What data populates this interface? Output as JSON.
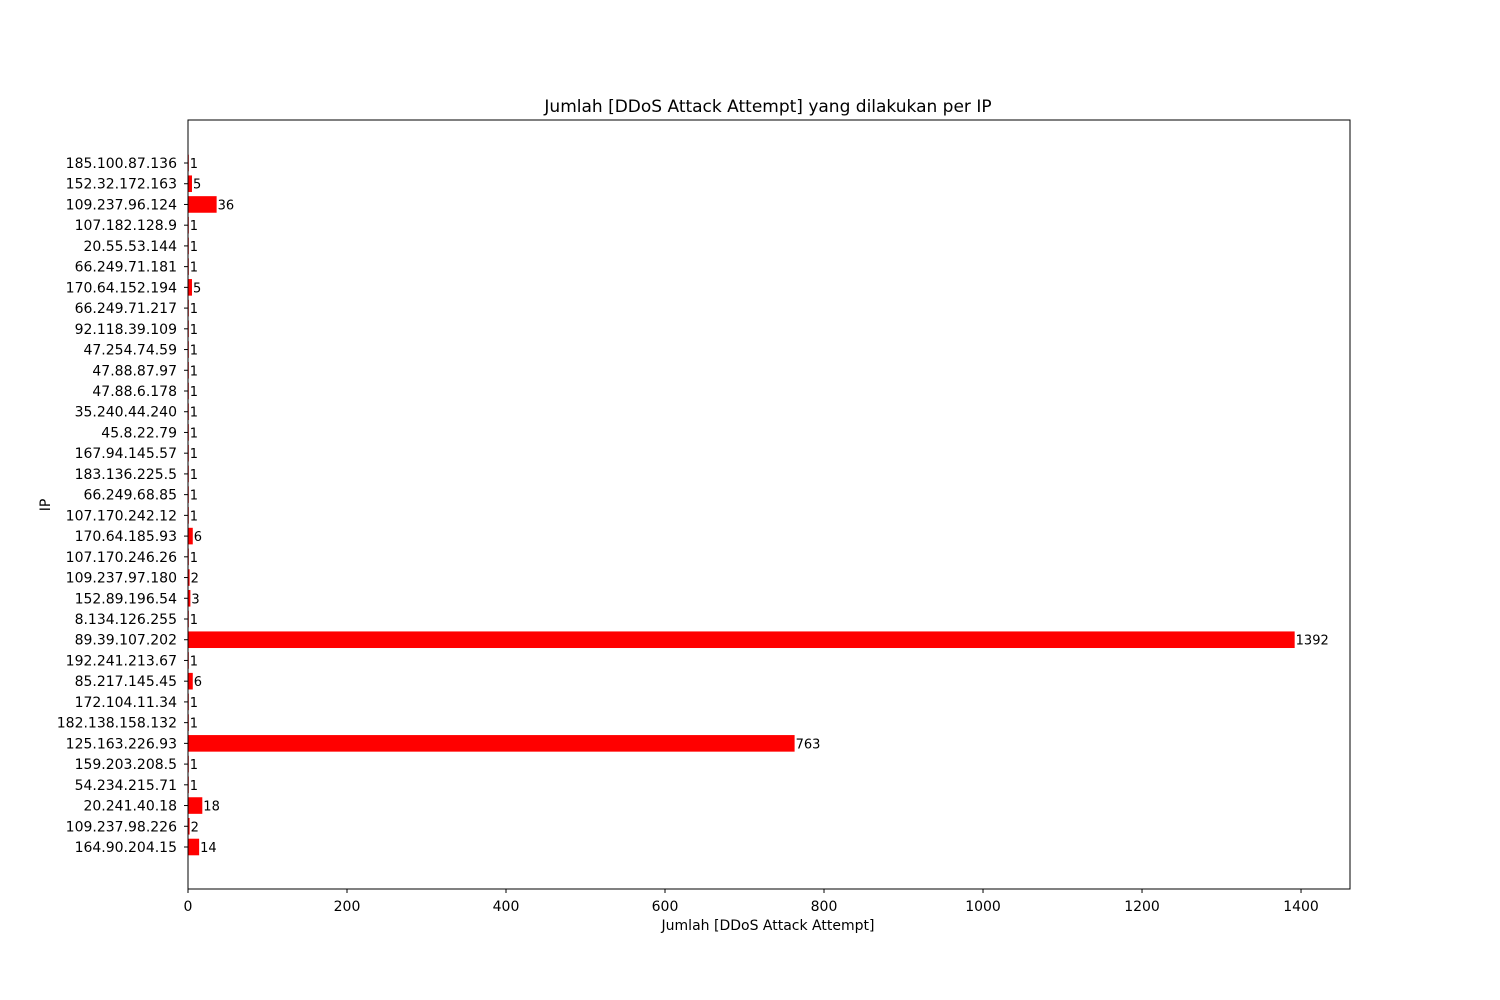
{
  "chart_data": {
    "type": "bar",
    "orientation": "horizontal",
    "title": "Jumlah [DDoS Attack Attempt] yang dilakukan per IP",
    "xlabel": "Jumlah [DDoS Attack Attempt]",
    "ylabel": "IP",
    "xlim": [
      0,
      1461.6
    ],
    "xticks": [
      "0",
      "200",
      "400",
      "600",
      "800",
      "1000",
      "1200",
      "1400"
    ],
    "grid": false,
    "bar_color": "#ff0000",
    "categories": [
      "164.90.204.15",
      "109.237.98.226",
      "20.241.40.18",
      "54.234.215.71",
      "159.203.208.5",
      "125.163.226.93",
      "182.138.158.132",
      "172.104.11.34",
      "85.217.145.45",
      "192.241.213.67",
      "89.39.107.202",
      "8.134.126.255",
      "152.89.196.54",
      "109.237.97.180",
      "107.170.246.26",
      "170.64.185.93",
      "107.170.242.12",
      "66.249.68.85",
      "183.136.225.5",
      "167.94.145.57",
      "45.8.22.79",
      "35.240.44.240",
      "47.88.6.178",
      "47.88.87.97",
      "47.254.74.59",
      "92.118.39.109",
      "66.249.71.217",
      "170.64.152.194",
      "66.249.71.181",
      "20.55.53.144",
      "107.182.128.9",
      "109.237.96.124",
      "152.32.172.163",
      "185.100.87.136"
    ],
    "values": [
      14,
      2,
      18,
      1,
      1,
      763,
      1,
      1,
      6,
      1,
      1392,
      1,
      3,
      2,
      1,
      6,
      1,
      1,
      1,
      1,
      1,
      1,
      1,
      1,
      1,
      1,
      1,
      5,
      1,
      1,
      1,
      36,
      5,
      1
    ]
  }
}
